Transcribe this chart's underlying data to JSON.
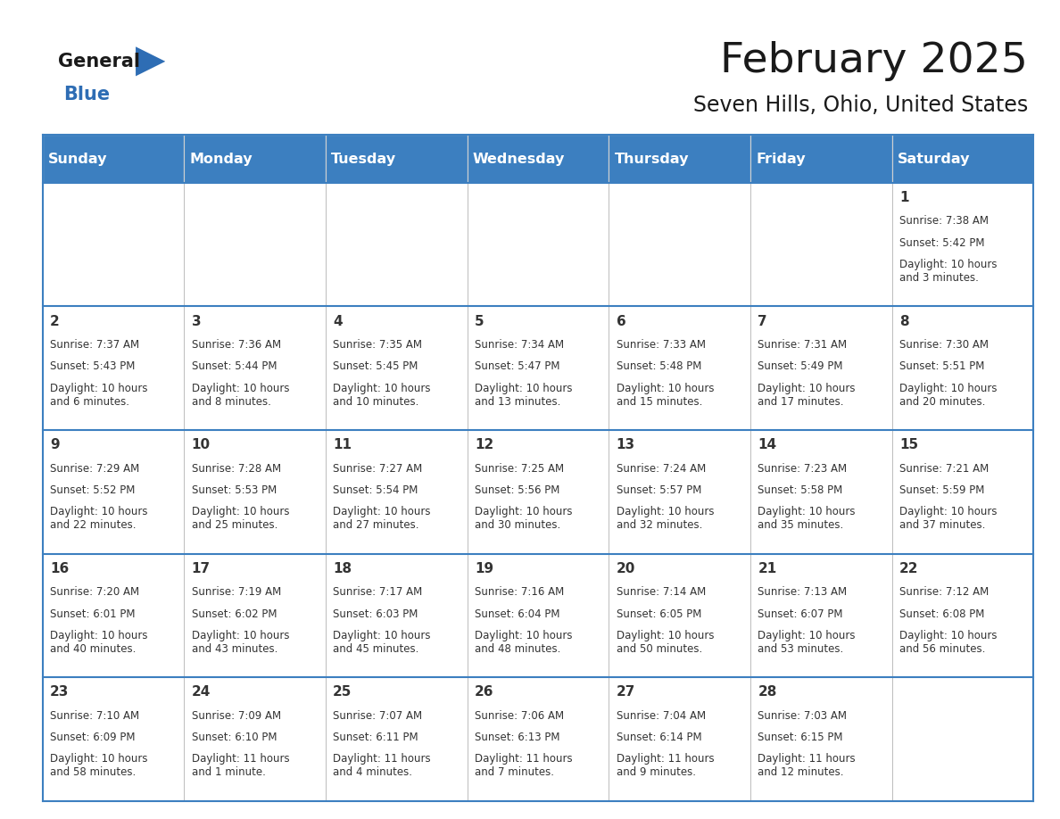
{
  "title": "February 2025",
  "subtitle": "Seven Hills, Ohio, United States",
  "header_bg": "#3c7fc0",
  "header_text_color": "#ffffff",
  "border_color": "#3c7fc0",
  "text_color": "#333333",
  "day_headers": [
    "Sunday",
    "Monday",
    "Tuesday",
    "Wednesday",
    "Thursday",
    "Friday",
    "Saturday"
  ],
  "days": [
    {
      "day": 1,
      "col": 6,
      "row": 0,
      "sunrise": "7:38 AM",
      "sunset": "5:42 PM",
      "daylight": "10 hours\nand 3 minutes."
    },
    {
      "day": 2,
      "col": 0,
      "row": 1,
      "sunrise": "7:37 AM",
      "sunset": "5:43 PM",
      "daylight": "10 hours\nand 6 minutes."
    },
    {
      "day": 3,
      "col": 1,
      "row": 1,
      "sunrise": "7:36 AM",
      "sunset": "5:44 PM",
      "daylight": "10 hours\nand 8 minutes."
    },
    {
      "day": 4,
      "col": 2,
      "row": 1,
      "sunrise": "7:35 AM",
      "sunset": "5:45 PM",
      "daylight": "10 hours\nand 10 minutes."
    },
    {
      "day": 5,
      "col": 3,
      "row": 1,
      "sunrise": "7:34 AM",
      "sunset": "5:47 PM",
      "daylight": "10 hours\nand 13 minutes."
    },
    {
      "day": 6,
      "col": 4,
      "row": 1,
      "sunrise": "7:33 AM",
      "sunset": "5:48 PM",
      "daylight": "10 hours\nand 15 minutes."
    },
    {
      "day": 7,
      "col": 5,
      "row": 1,
      "sunrise": "7:31 AM",
      "sunset": "5:49 PM",
      "daylight": "10 hours\nand 17 minutes."
    },
    {
      "day": 8,
      "col": 6,
      "row": 1,
      "sunrise": "7:30 AM",
      "sunset": "5:51 PM",
      "daylight": "10 hours\nand 20 minutes."
    },
    {
      "day": 9,
      "col": 0,
      "row": 2,
      "sunrise": "7:29 AM",
      "sunset": "5:52 PM",
      "daylight": "10 hours\nand 22 minutes."
    },
    {
      "day": 10,
      "col": 1,
      "row": 2,
      "sunrise": "7:28 AM",
      "sunset": "5:53 PM",
      "daylight": "10 hours\nand 25 minutes."
    },
    {
      "day": 11,
      "col": 2,
      "row": 2,
      "sunrise": "7:27 AM",
      "sunset": "5:54 PM",
      "daylight": "10 hours\nand 27 minutes."
    },
    {
      "day": 12,
      "col": 3,
      "row": 2,
      "sunrise": "7:25 AM",
      "sunset": "5:56 PM",
      "daylight": "10 hours\nand 30 minutes."
    },
    {
      "day": 13,
      "col": 4,
      "row": 2,
      "sunrise": "7:24 AM",
      "sunset": "5:57 PM",
      "daylight": "10 hours\nand 32 minutes."
    },
    {
      "day": 14,
      "col": 5,
      "row": 2,
      "sunrise": "7:23 AM",
      "sunset": "5:58 PM",
      "daylight": "10 hours\nand 35 minutes."
    },
    {
      "day": 15,
      "col": 6,
      "row": 2,
      "sunrise": "7:21 AM",
      "sunset": "5:59 PM",
      "daylight": "10 hours\nand 37 minutes."
    },
    {
      "day": 16,
      "col": 0,
      "row": 3,
      "sunrise": "7:20 AM",
      "sunset": "6:01 PM",
      "daylight": "10 hours\nand 40 minutes."
    },
    {
      "day": 17,
      "col": 1,
      "row": 3,
      "sunrise": "7:19 AM",
      "sunset": "6:02 PM",
      "daylight": "10 hours\nand 43 minutes."
    },
    {
      "day": 18,
      "col": 2,
      "row": 3,
      "sunrise": "7:17 AM",
      "sunset": "6:03 PM",
      "daylight": "10 hours\nand 45 minutes."
    },
    {
      "day": 19,
      "col": 3,
      "row": 3,
      "sunrise": "7:16 AM",
      "sunset": "6:04 PM",
      "daylight": "10 hours\nand 48 minutes."
    },
    {
      "day": 20,
      "col": 4,
      "row": 3,
      "sunrise": "7:14 AM",
      "sunset": "6:05 PM",
      "daylight": "10 hours\nand 50 minutes."
    },
    {
      "day": 21,
      "col": 5,
      "row": 3,
      "sunrise": "7:13 AM",
      "sunset": "6:07 PM",
      "daylight": "10 hours\nand 53 minutes."
    },
    {
      "day": 22,
      "col": 6,
      "row": 3,
      "sunrise": "7:12 AM",
      "sunset": "6:08 PM",
      "daylight": "10 hours\nand 56 minutes."
    },
    {
      "day": 23,
      "col": 0,
      "row": 4,
      "sunrise": "7:10 AM",
      "sunset": "6:09 PM",
      "daylight": "10 hours\nand 58 minutes."
    },
    {
      "day": 24,
      "col": 1,
      "row": 4,
      "sunrise": "7:09 AM",
      "sunset": "6:10 PM",
      "daylight": "11 hours\nand 1 minute."
    },
    {
      "day": 25,
      "col": 2,
      "row": 4,
      "sunrise": "7:07 AM",
      "sunset": "6:11 PM",
      "daylight": "11 hours\nand 4 minutes."
    },
    {
      "day": 26,
      "col": 3,
      "row": 4,
      "sunrise": "7:06 AM",
      "sunset": "6:13 PM",
      "daylight": "11 hours\nand 7 minutes."
    },
    {
      "day": 27,
      "col": 4,
      "row": 4,
      "sunrise": "7:04 AM",
      "sunset": "6:14 PM",
      "daylight": "11 hours\nand 9 minutes."
    },
    {
      "day": 28,
      "col": 5,
      "row": 4,
      "sunrise": "7:03 AM",
      "sunset": "6:15 PM",
      "daylight": "11 hours\nand 12 minutes."
    }
  ],
  "logo_general_color": "#1a1a1a",
  "logo_blue_color": "#2e6db4",
  "logo_triangle_color": "#2e6db4",
  "n_rows": 5,
  "n_cols": 7,
  "title_fontsize": 34,
  "subtitle_fontsize": 17,
  "header_fontsize": 11.5,
  "day_num_fontsize": 11,
  "cell_text_fontsize": 8.5
}
